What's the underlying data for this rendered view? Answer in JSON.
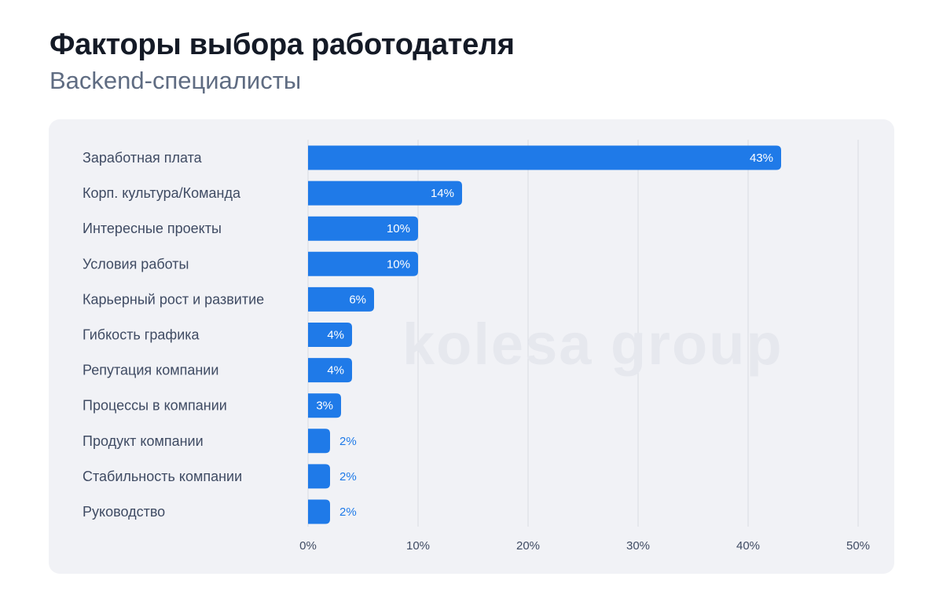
{
  "header": {
    "title": "Факторы выбора работодателя",
    "subtitle": "Backend-специалисты"
  },
  "watermark": "kolesa group",
  "colors": {
    "bar": "#1f7ae8",
    "panel": "#f1f2f6",
    "grid": "#d9dce3"
  },
  "chart_data": {
    "type": "bar",
    "orientation": "horizontal",
    "title": "Факторы выбора работодателя",
    "subtitle": "Backend-специалисты",
    "categories": [
      "Заработная плата",
      "Корп. культура/Команда",
      "Интересные проекты",
      "Условия работы",
      "Карьерный рост и развитие",
      "Гибкость графика",
      "Репутация компании",
      "Процессы в компании",
      "Продукт компании",
      "Стабильность компании",
      "Руководство"
    ],
    "values": [
      43,
      14,
      10,
      10,
      6,
      4,
      4,
      3,
      2,
      2,
      2
    ],
    "value_labels": [
      "43%",
      "14%",
      "10%",
      "10%",
      "6%",
      "4%",
      "4%",
      "3%",
      "2%",
      "2%",
      "2%"
    ],
    "xlim": [
      0,
      50
    ],
    "xticks": [
      0,
      10,
      20,
      30,
      40,
      50
    ],
    "xtick_labels": [
      "0%",
      "10%",
      "20%",
      "30%",
      "40%",
      "50%"
    ],
    "xlabel": "",
    "ylabel": "",
    "grid": true
  }
}
